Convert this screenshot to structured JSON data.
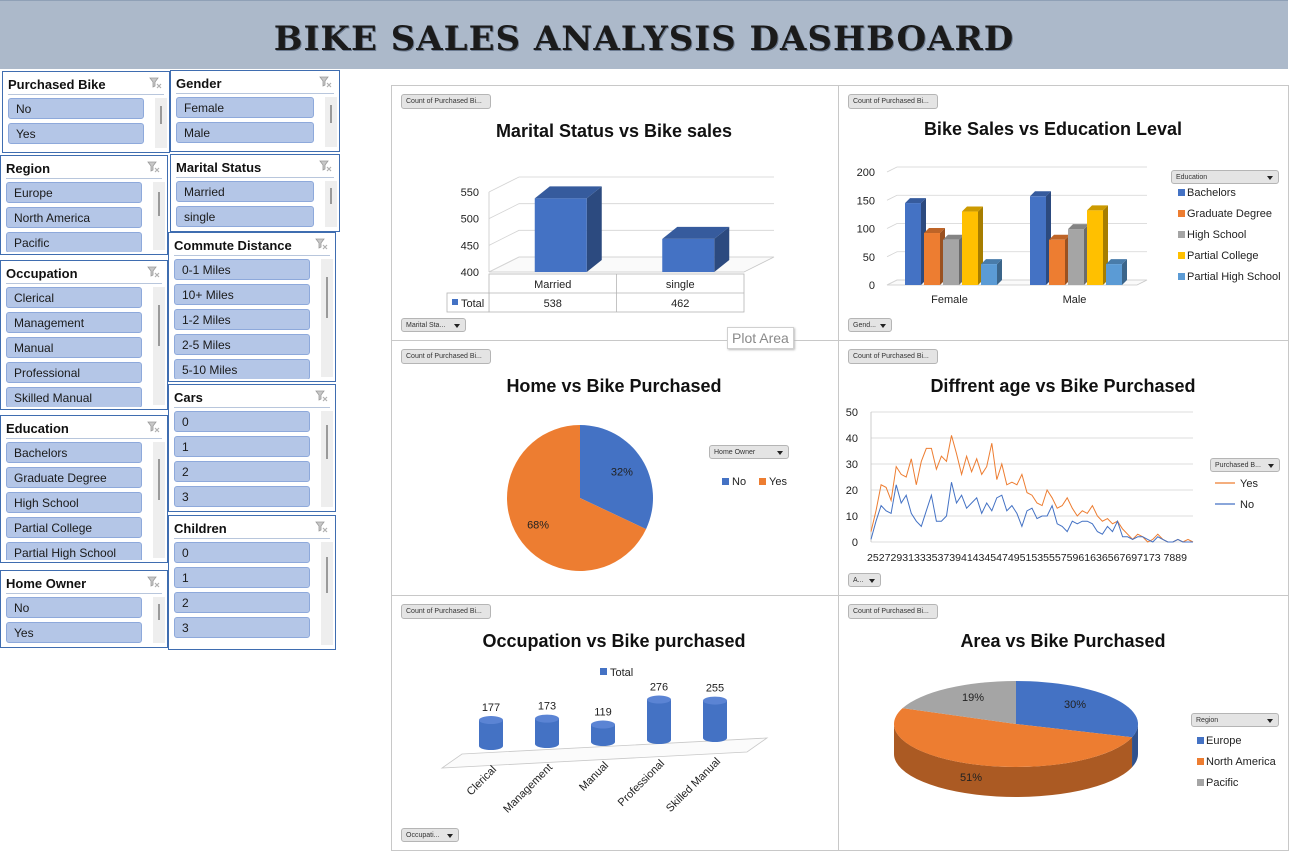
{
  "dashboard_title": "BIKE SALES ANALYSIS DASHBOARD",
  "slicers": {
    "purchased_bike": {
      "title": "Purchased Bike",
      "items": [
        "No",
        "Yes"
      ]
    },
    "gender": {
      "title": "Gender",
      "items": [
        "Female",
        "Male"
      ]
    },
    "region": {
      "title": "Region",
      "items": [
        "Europe",
        "North America",
        "Pacific"
      ]
    },
    "marital_status": {
      "title": "Marital Status",
      "items": [
        "Married",
        "single"
      ]
    },
    "commute_distance": {
      "title": "Commute Distance",
      "items": [
        "0-1 Miles",
        "10+ Miles",
        "1-2 Miles",
        "2-5 Miles",
        "5-10 Miles"
      ]
    },
    "occupation": {
      "title": "Occupation",
      "items": [
        "Clerical",
        "Management",
        "Manual",
        "Professional",
        "Skilled Manual"
      ]
    },
    "cars": {
      "title": "Cars",
      "items": [
        "0",
        "1",
        "2",
        "3"
      ]
    },
    "education": {
      "title": "Education",
      "items": [
        "Bachelors",
        "Graduate Degree",
        "High School",
        "Partial College",
        "Partial High School"
      ]
    },
    "children": {
      "title": "Children",
      "items": [
        "0",
        "1",
        "2",
        "3"
      ]
    },
    "home_owner": {
      "title": "Home Owner",
      "items": [
        "No",
        "Yes"
      ]
    }
  },
  "tooltip": "Plot Area",
  "colors": {
    "blue": "#4472c4",
    "orange": "#ed7d31",
    "gray": "#a5a5a5",
    "gold": "#ffc000",
    "light_blue": "#5b9bd5",
    "banner": "#acb9ca",
    "slicer_item": "#b4c6e7",
    "slicer_border": "#3f6db0"
  },
  "icons": {
    "slicer_clear": "clear-filter-icon",
    "dropdown": "dropdown-arrow-icon"
  },
  "charts": {
    "marital": {
      "field_button": "Count of Purchased Bi...",
      "filter_button": "Marital Sta...",
      "table_header": [
        "Married",
        "single"
      ],
      "table_label": "Total",
      "table_values": [
        "538",
        "462"
      ]
    },
    "education": {
      "field_button": "Count of Purchased Bi...",
      "filter_button": "Gend...",
      "legend_button": "Education"
    },
    "home": {
      "field_button": "Count of Purchased Bi...",
      "legend_button": "Home Owner"
    },
    "age": {
      "field_button": "Count of Purchased Bi...",
      "filter_button": "A...",
      "legend_button": "Purchased B...",
      "x_axis_label": "25272931333537394143454749515355575961636567697173 7889"
    },
    "occupation": {
      "field_button": "Count of Purchased Bi...",
      "filter_button": "Occupati..."
    },
    "area": {
      "field_button": "Count of Purchased Bi...",
      "legend_button": "Region"
    }
  },
  "chart_data": [
    {
      "id": "marital",
      "type": "bar",
      "title": "Marital Status vs Bike sales",
      "categories": [
        "Married",
        "single"
      ],
      "series": [
        {
          "name": "Total",
          "values": [
            538,
            462
          ]
        }
      ],
      "ylim": [
        400,
        550
      ],
      "yticks": [
        400,
        450,
        500,
        550
      ],
      "grid": true,
      "data_table": true
    },
    {
      "id": "education",
      "type": "bar",
      "title": "Bike Sales vs Education Leval",
      "categories": [
        "Female",
        "Male"
      ],
      "series": [
        {
          "name": "Bachelors",
          "values": [
            145,
            157
          ]
        },
        {
          "name": "Graduate Degree",
          "values": [
            92,
            80
          ]
        },
        {
          "name": "High School",
          "values": [
            80,
            99
          ]
        },
        {
          "name": "Partial College",
          "values": [
            130,
            132
          ]
        },
        {
          "name": "Partial High School",
          "values": [
            37,
            37
          ]
        }
      ],
      "ylim": [
        0,
        200
      ],
      "yticks": [
        0,
        50,
        100,
        150,
        200
      ],
      "grid": true,
      "legend": "right"
    },
    {
      "id": "home",
      "type": "pie",
      "title": "Home vs Bike Purchased",
      "categories": [
        "No",
        "Yes"
      ],
      "values": [
        32,
        68
      ],
      "labels": [
        "32%",
        "68%"
      ],
      "legend": "right"
    },
    {
      "id": "age",
      "type": "line",
      "title": "Diffrent age vs Bike Purchased",
      "x": [
        25,
        26,
        27,
        28,
        29,
        30,
        31,
        32,
        33,
        34,
        35,
        36,
        37,
        38,
        39,
        40,
        41,
        42,
        43,
        44,
        45,
        46,
        47,
        48,
        49,
        50,
        51,
        52,
        53,
        54,
        55,
        56,
        57,
        58,
        59,
        60,
        61,
        62,
        63,
        64,
        65,
        66,
        67,
        68,
        69,
        70,
        71,
        72,
        73,
        74,
        75,
        76,
        77,
        78,
        79,
        80,
        81,
        82,
        83,
        84,
        85,
        86,
        87,
        88,
        89
      ],
      "series": [
        {
          "name": "Yes",
          "values": [
            4,
            12,
            22,
            21,
            16,
            29,
            26,
            25,
            32,
            22,
            31,
            36,
            36,
            28,
            33,
            31,
            41,
            34,
            26,
            33,
            27,
            32,
            26,
            29,
            38,
            24,
            30,
            22,
            23,
            22,
            26,
            19,
            18,
            15,
            14,
            20,
            17,
            13,
            14,
            17,
            13,
            10,
            12,
            11,
            14,
            10,
            8,
            9,
            7,
            8,
            5,
            3,
            1,
            3,
            2,
            0,
            1,
            3,
            1,
            0,
            0,
            1,
            0,
            1,
            0
          ]
        },
        {
          "name": "No",
          "values": [
            1,
            8,
            14,
            12,
            11,
            22,
            15,
            18,
            11,
            8,
            6,
            12,
            18,
            8,
            8,
            10,
            23,
            15,
            18,
            13,
            15,
            17,
            11,
            15,
            12,
            17,
            18,
            12,
            14,
            11,
            6,
            12,
            13,
            9,
            10,
            10,
            14,
            7,
            6,
            4,
            8,
            7,
            8,
            8,
            7,
            4,
            3,
            6,
            4,
            8,
            2,
            2,
            1,
            2,
            2,
            1,
            0,
            2,
            1,
            0,
            0,
            1,
            0,
            0,
            0
          ]
        }
      ],
      "ylim": [
        0,
        50
      ],
      "yticks": [
        0,
        10,
        20,
        30,
        40,
        50
      ],
      "grid": true,
      "legend": "right"
    },
    {
      "id": "occupation",
      "type": "bar",
      "title": "Occupation vs Bike purchased",
      "categories": [
        "Clerical",
        "Management",
        "Manual",
        "Professional",
        "Skilled Manual"
      ],
      "series": [
        {
          "name": "Total",
          "values": [
            177,
            173,
            119,
            276,
            255
          ]
        }
      ],
      "data_labels": true,
      "legend": "top"
    },
    {
      "id": "area",
      "type": "pie",
      "title": "Area vs Bike Purchased",
      "categories": [
        "Europe",
        "North America",
        "Pacific"
      ],
      "values": [
        30,
        51,
        19
      ],
      "labels": [
        "30%",
        "51%",
        "19%"
      ],
      "legend": "right"
    }
  ]
}
